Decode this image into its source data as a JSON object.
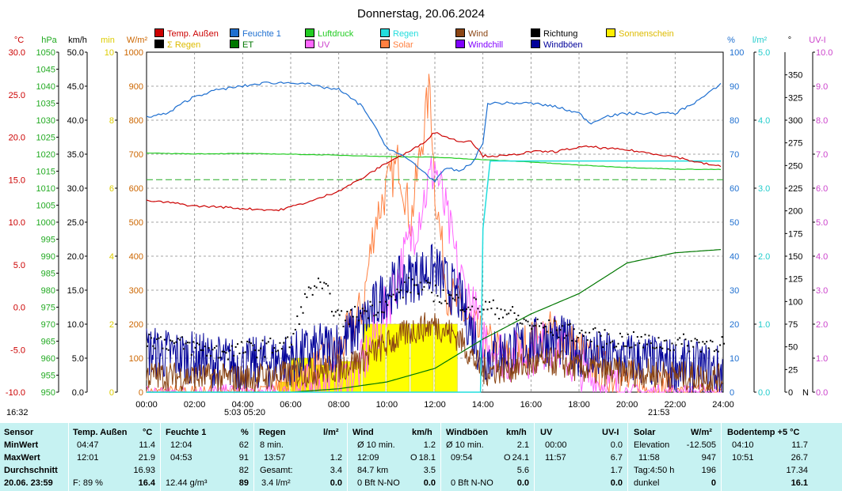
{
  "title": "Donnerstag, 20.06.2024",
  "legend": [
    {
      "label": "Temp. Außen",
      "color": "#cc0000"
    },
    {
      "label": "Feuchte 1",
      "color": "#1e6fd0"
    },
    {
      "label": "Luftdruck",
      "color": "#22cc22"
    },
    {
      "label": "Regen",
      "color": "#22dddd"
    },
    {
      "label": "Wind",
      "color": "#8b4513"
    },
    {
      "label": "Richtung",
      "color": "#000000"
    },
    {
      "label": "Sonnenschein",
      "color": "#ffee00"
    },
    {
      "label": "Σ Regen",
      "color": "#000000"
    },
    {
      "label": "ET",
      "color": "#007700"
    },
    {
      "label": "UV",
      "color": "#ff66ff"
    },
    {
      "label": "Solar",
      "color": "#ff8040"
    },
    {
      "label": "Windchill",
      "color": "#8000ff"
    },
    {
      "label": "Windböen",
      "color": "#000099"
    }
  ],
  "axes": {
    "temp": {
      "unit": "°C",
      "color": "#cc0000",
      "ticks": [
        "30.0",
        "25.0",
        "20.0",
        "15.0",
        "10.0",
        "5.0",
        "0.0",
        "-5.0",
        "-10.0"
      ]
    },
    "hpa": {
      "unit": "hPa",
      "color": "#22aa22",
      "ticks": [
        "1050",
        "1045",
        "1040",
        "1035",
        "1030",
        "1025",
        "1020",
        "1015",
        "1010",
        "1005",
        "1000",
        "995",
        "990",
        "985",
        "980",
        "975",
        "970",
        "965",
        "960",
        "955",
        "950"
      ]
    },
    "kmh": {
      "unit": "km/h",
      "color": "#000000",
      "ticks": [
        "50.0",
        "45.0",
        "40.0",
        "35.0",
        "30.0",
        "25.0",
        "20.0",
        "15.0",
        "10.0",
        "5.0",
        "0.0"
      ]
    },
    "min": {
      "unit": "min",
      "color": "#ddcc00",
      "ticks": [
        "10",
        "8",
        "6",
        "4",
        "2",
        "0"
      ]
    },
    "wm2": {
      "unit": "W/m²",
      "color": "#cc6600",
      "ticks": [
        "1000",
        "900",
        "800",
        "700",
        "600",
        "500",
        "400",
        "300",
        "200",
        "100",
        "0"
      ]
    },
    "pct": {
      "unit": "%",
      "color": "#1e6fd0",
      "ticks": [
        "100",
        "90",
        "80",
        "70",
        "60",
        "50",
        "40",
        "30",
        "20",
        "10",
        "0"
      ]
    },
    "lm2": {
      "unit": "l/m²",
      "color": "#22cccc",
      "ticks": [
        "5.0",
        "4.0",
        "3.0",
        "2.0",
        "1.0",
        "0.0"
      ]
    },
    "deg": {
      "unit": "°",
      "color": "#000000",
      "ticks": [
        "350",
        "325",
        "300",
        "275",
        "250",
        "225",
        "200",
        "175",
        "150",
        "125",
        "100",
        "75",
        "50",
        "25",
        "0"
      ],
      "zero_label": "N"
    },
    "uvi": {
      "unit": "UV-I",
      "color": "#cc44cc",
      "ticks": [
        "10.0",
        "9.0",
        "8.0",
        "7.0",
        "6.0",
        "5.0",
        "4.0",
        "3.0",
        "2.0",
        "1.0",
        "0.0"
      ]
    }
  },
  "xticks": [
    "00:00",
    "02:00",
    "04:00",
    "06:00",
    "08:00",
    "10:00",
    "12:00",
    "14:00",
    "16:00",
    "18:00",
    "20:00",
    "22:00",
    "24:00"
  ],
  "sun_marks": {
    "sunrise_left": "16:32",
    "sunrise": "5:03  05:20",
    "sunset": "21:53"
  },
  "chart_data": {
    "type": "line",
    "title": "Donnerstag, 20.06.2024",
    "x_unit": "hours",
    "xlim": [
      0,
      24
    ],
    "series": [
      {
        "name": "Temp. Außen",
        "axis": "°C",
        "x": [
          0,
          1,
          2,
          3,
          4,
          4.8,
          5.5,
          6,
          7,
          8,
          9,
          10,
          11,
          11.5,
          12,
          12.5,
          13,
          13.5,
          14,
          15,
          16,
          17,
          18,
          18.5,
          19,
          20,
          21,
          22,
          23,
          24
        ],
        "values": [
          12.5,
          12.3,
          11.9,
          11.8,
          11.6,
          11.5,
          11.4,
          11.8,
          12.6,
          13.7,
          15.2,
          17.0,
          18.4,
          19.3,
          20.6,
          20.0,
          19.5,
          19.6,
          17.8,
          17.8,
          18.3,
          18.3,
          18.8,
          18.9,
          18.7,
          18.5,
          18.1,
          17.7,
          17.0,
          16.5
        ]
      },
      {
        "name": "Feuchte 1",
        "axis": "%",
        "x": [
          0,
          0.9,
          1.5,
          2,
          3,
          4,
          5,
          6.5,
          7,
          8,
          9,
          10,
          11,
          11.5,
          12,
          12.5,
          13,
          13.5,
          14,
          14.2,
          15,
          16,
          17,
          18,
          18.5,
          19,
          20,
          21,
          22,
          23,
          24
        ],
        "values": [
          81,
          82,
          85,
          87,
          89,
          90,
          91,
          91,
          90,
          89,
          84,
          72,
          68,
          65,
          62,
          66,
          65,
          67,
          73,
          85,
          85,
          85,
          84,
          82,
          79,
          81,
          82,
          82,
          82,
          86,
          91
        ]
      },
      {
        "name": "Luftdruck",
        "axis": "hPa",
        "x": [
          0,
          2,
          4,
          6,
          8,
          10,
          12,
          14,
          16,
          18,
          20,
          22,
          24
        ],
        "values": [
          1020.3,
          1020.1,
          1020.2,
          1020.0,
          1019.7,
          1019.3,
          1019.1,
          1018.4,
          1017.7,
          1016.8,
          1016.1,
          1015.6,
          1015.5
        ]
      },
      {
        "name": "Regen",
        "axis": "l/m²",
        "x": [
          0,
          13.9,
          14.0,
          14.3,
          15,
          24
        ],
        "values": [
          0,
          0,
          2.4,
          3.4,
          3.4,
          3.4
        ]
      },
      {
        "name": "ET",
        "axis": "l/m²",
        "x": [
          0,
          4,
          6,
          8,
          10,
          12,
          14,
          16,
          18,
          20,
          22,
          24
        ],
        "values": [
          0,
          0,
          0,
          0.05,
          0.15,
          0.35,
          0.78,
          1.15,
          1.45,
          1.9,
          2.05,
          2.1
        ]
      },
      {
        "name": "Solar",
        "axis": "W/m²",
        "x": [
          0,
          5.2,
          6,
          7,
          8,
          9,
          9.5,
          10,
          10.5,
          11,
          11.5,
          11.8,
          12,
          12.5,
          13,
          13.5,
          14,
          15,
          16,
          17,
          18,
          19,
          20,
          21,
          22,
          23,
          24
        ],
        "values": [
          0,
          0,
          20,
          60,
          120,
          250,
          500,
          600,
          680,
          500,
          760,
          900,
          600,
          300,
          250,
          200,
          150,
          100,
          150,
          180,
          120,
          60,
          30,
          10,
          0,
          0,
          0
        ]
      },
      {
        "name": "UV",
        "axis": "UV-I",
        "x": [
          0,
          6,
          8,
          9,
          10,
          11,
          12,
          13,
          14,
          15,
          16,
          17,
          18,
          19,
          20,
          24
        ],
        "values": [
          0,
          0,
          0.2,
          0.8,
          2.5,
          4.5,
          6.7,
          3.5,
          1.7,
          1.0,
          1.2,
          1.5,
          0.6,
          0.2,
          0,
          0
        ]
      },
      {
        "name": "Wind",
        "axis": "km/h",
        "x": [
          0,
          2,
          4,
          6,
          8,
          9,
          10,
          11,
          12,
          13,
          14,
          15,
          16,
          17,
          18,
          19,
          20,
          22,
          24
        ],
        "values": [
          2.5,
          2.2,
          2.0,
          2.6,
          3.5,
          5.0,
          7.0,
          9.0,
          10.0,
          8.0,
          3.0,
          3.5,
          4.0,
          4.5,
          3.5,
          3.0,
          3.0,
          2.5,
          2.0
        ]
      },
      {
        "name": "Windböen",
        "axis": "km/h",
        "x": [
          0,
          2,
          4,
          6,
          8,
          9,
          10,
          11,
          12,
          13,
          14,
          15,
          16,
          17,
          18,
          19,
          20,
          22,
          24
        ],
        "values": [
          6,
          5,
          4,
          5,
          7,
          10,
          15,
          17,
          18,
          14,
          5,
          6,
          7,
          8,
          6,
          5,
          5,
          4,
          3
        ]
      },
      {
        "name": "Richtung",
        "axis": "°",
        "x": [
          0,
          3,
          5,
          6,
          6.5,
          7,
          7.5,
          8,
          9,
          10,
          11,
          12,
          13,
          14,
          15,
          15.5,
          16,
          17,
          18,
          19,
          20,
          21,
          22,
          24
        ],
        "values": [
          60,
          45,
          50,
          55,
          100,
          120,
          110,
          80,
          90,
          100,
          120,
          110,
          100,
          95,
          90,
          80,
          75,
          70,
          65,
          60,
          58,
          55,
          55,
          55
        ]
      },
      {
        "name": "Sonnenschein",
        "axis": "min",
        "x": [
          5.5,
          6,
          7,
          8,
          9,
          10,
          11,
          12
        ],
        "values": [
          0.3,
          1.0,
          0.8,
          0.9,
          2.0,
          2.0,
          2.0,
          2.0
        ]
      }
    ]
  },
  "stats": {
    "sensor": {
      "header": "Sensor",
      "min": "MinWert",
      "max": "MaxWert",
      "avg": "Durchschnitt",
      "now": "20.06.  23:59"
    },
    "temp": {
      "header": "Temp. Außen",
      "unit": "°C",
      "min_t": "04:47",
      "min_v": "11.4",
      "max_t": "12:01",
      "max_v": "21.9",
      "avg_v": "16.93",
      "now_l": "F: 89 %",
      "now_v": "16.4"
    },
    "hum": {
      "header": "Feuchte 1",
      "unit": "%",
      "min_t": "12:04",
      "min_v": "62",
      "max_t": "04:53",
      "max_v": "91",
      "avg_v": "82",
      "now_l": "12.44 g/m³",
      "now_v": "89"
    },
    "rain": {
      "header": "Regen",
      "unit": "l/m²",
      "min_t": "8 min.",
      "min_v": "",
      "max_t": "13:57",
      "max_v": "1.2",
      "avg_l": "Gesamt:",
      "avg_v": "3.4",
      "now_l": "3.4 l/m²",
      "now_v": "0.0"
    },
    "wind": {
      "header": "Wind",
      "unit": "km/h",
      "min_l": "Ø 10 min.",
      "min_v": "1.2",
      "max_t": "12:09",
      "max_l": "O",
      "max_v": "18.1",
      "avg_l": "84.7 km",
      "avg_v": "3.5",
      "now_l": "0 Bft N-NO",
      "now_v": "0.0"
    },
    "gust": {
      "header": "Windböen",
      "unit": "km/h",
      "min_l": "Ø 10 min.",
      "min_v": "2.1",
      "max_t": "09:54",
      "max_l": "O",
      "max_v": "24.1",
      "avg_v": "5.6",
      "now_l": "0 Bft N-NO",
      "now_v": "0.0"
    },
    "uv": {
      "header": "UV",
      "unit": "UV-I",
      "min_t": "00:00",
      "min_v": "0.0",
      "max_t": "11:57",
      "max_v": "6.7",
      "avg_v": "1.7",
      "now_v": "0.0"
    },
    "solar": {
      "header": "Solar",
      "unit": "W/m²",
      "min_l": "Elevation",
      "min_v": "-12.505",
      "max_t": "11:58",
      "max_v": "947",
      "avg_l": "Tag:4:50 h",
      "avg_v": "196",
      "now_l": "dunkel",
      "now_v": "0"
    },
    "soil": {
      "header": "Bodentemp +5  °C",
      "min_t": "04:10",
      "min_v": "11.7",
      "max_t": "10:51",
      "max_v": "26.7",
      "avg_v": "17.34",
      "now_v": "16.1"
    }
  }
}
